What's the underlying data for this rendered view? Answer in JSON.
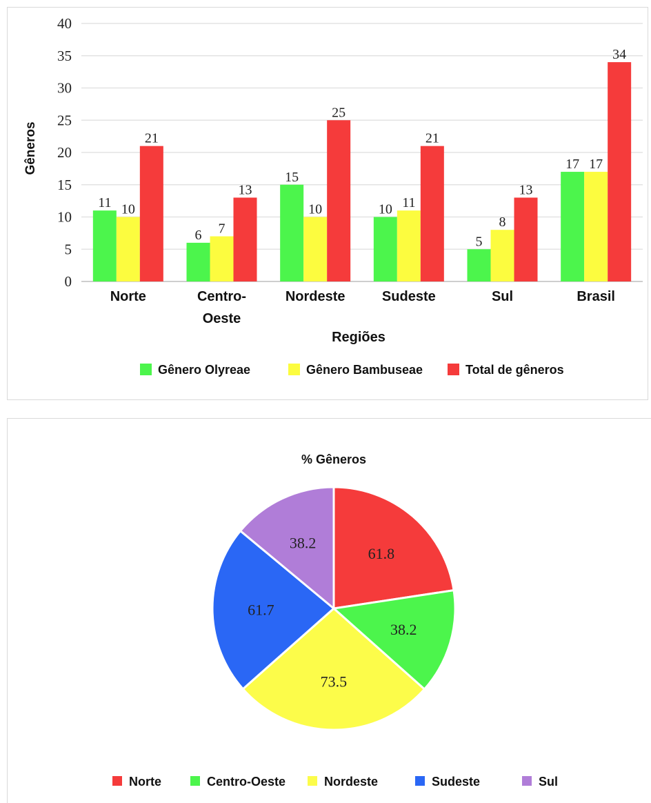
{
  "chart_data": [
    {
      "type": "bar",
      "title": "",
      "xlabel": "Regiões",
      "ylabel": "Gêneros",
      "ylim": [
        0,
        40
      ],
      "yticks": [
        "0",
        "5",
        "10",
        "15",
        "20",
        "25",
        "30",
        "35",
        "40"
      ],
      "grid": true,
      "legend_position": "bottom",
      "categories": [
        "Norte",
        "Centro-\nOeste",
        "Nordeste",
        "Sudeste",
        "Sul",
        "Brasil"
      ],
      "series": [
        {
          "name": "Gênero Olyreae",
          "color": "#4cf54c",
          "values": [
            11,
            6,
            15,
            10,
            5,
            17
          ]
        },
        {
          "name": "Gênero Bambuseae",
          "color": "#fcfc3f",
          "values": [
            10,
            7,
            10,
            11,
            8,
            17
          ]
        },
        {
          "name": "Total de gêneros",
          "color": "#f53b3b",
          "values": [
            21,
            13,
            25,
            21,
            13,
            34
          ]
        }
      ]
    },
    {
      "type": "pie",
      "title": "% Gêneros",
      "legend_position": "bottom",
      "slices": [
        {
          "label": "Norte",
          "value": 61.8,
          "color": "#f53b3b"
        },
        {
          "label": "Centro-Oeste",
          "value": 38.2,
          "color": "#4cf54c"
        },
        {
          "label": "Nordeste",
          "value": 73.5,
          "color": "#fcfc4a"
        },
        {
          "label": "Sudeste",
          "value": 61.7,
          "color": "#2a67f5"
        },
        {
          "label": "Sul",
          "value": 38.2,
          "color": "#b07dd8"
        }
      ]
    }
  ]
}
